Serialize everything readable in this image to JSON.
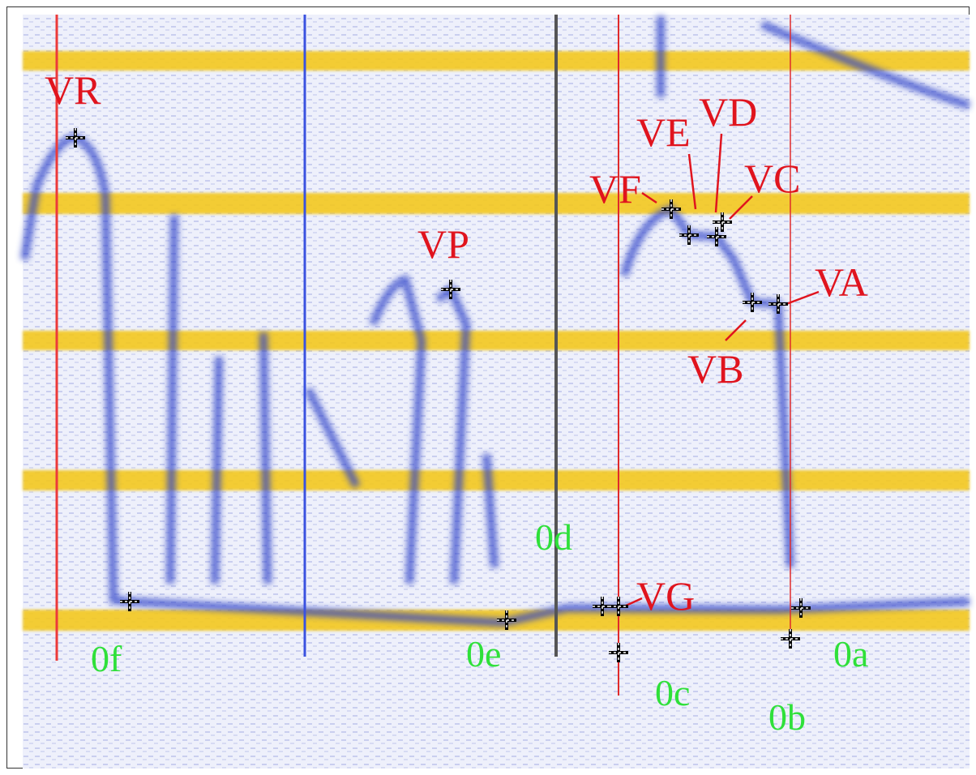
{
  "labels": [
    {
      "text": "VR"
    },
    {
      "text": "VP"
    },
    {
      "text": "VF"
    },
    {
      "text": "VE"
    },
    {
      "text": "VD"
    },
    {
      "text": "VC"
    },
    {
      "text": "VA"
    },
    {
      "text": "VB"
    },
    {
      "text": "VG"
    },
    {
      "text": "0d"
    },
    {
      "text": "0f"
    },
    {
      "text": "0e"
    },
    {
      "text": "0c"
    },
    {
      "text": "0b"
    },
    {
      "text": "0a"
    }
  ]
}
